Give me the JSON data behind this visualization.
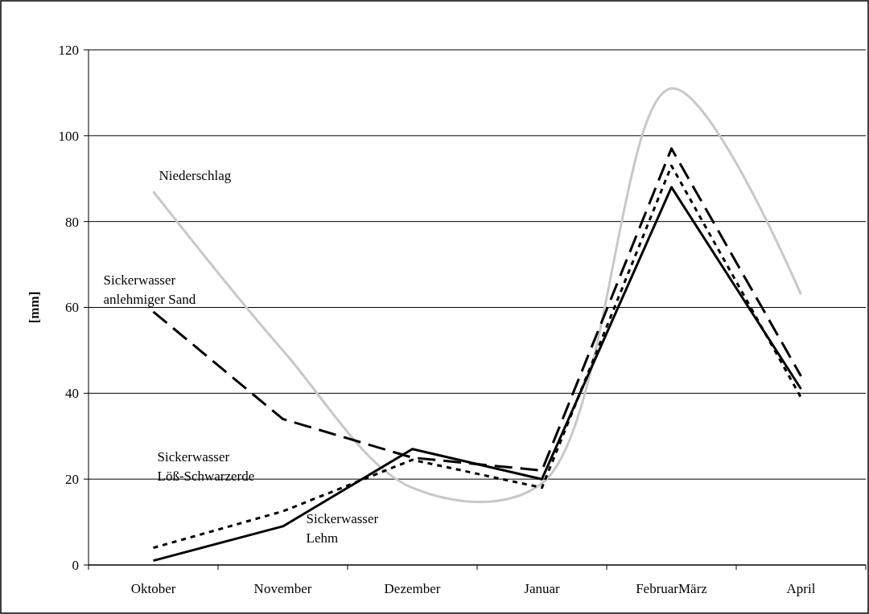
{
  "chart_data": {
    "type": "line",
    "ylabel": "[mm]",
    "categories": [
      "Oktober",
      "November",
      "Dezember",
      "Januar",
      "FebruarMärz",
      "April"
    ],
    "ylim": [
      0,
      120
    ],
    "yticks": [
      0,
      20,
      40,
      60,
      80,
      100,
      120
    ],
    "grid": "y",
    "series": [
      {
        "name": "Niederschlag",
        "color": "#c8c8c8",
        "line_style": "solid",
        "values": [
          87,
          50,
          18,
          19,
          111,
          63
        ]
      },
      {
        "name": "Sickerwasser anlehmiger Sand",
        "color": "#000000",
        "line_style": "dashed",
        "values": [
          59,
          34,
          25,
          22,
          97,
          44
        ]
      },
      {
        "name": "Sickerwasser Löß-Schwarzerde",
        "color": "#000000",
        "line_style": "dotted",
        "values": [
          4,
          12.5,
          24.5,
          18,
          93,
          39
        ]
      },
      {
        "name": "Sickerwasser Lehm",
        "color": "#000000",
        "line_style": "solid",
        "values": [
          1,
          9,
          27,
          20,
          88,
          41
        ]
      }
    ]
  }
}
